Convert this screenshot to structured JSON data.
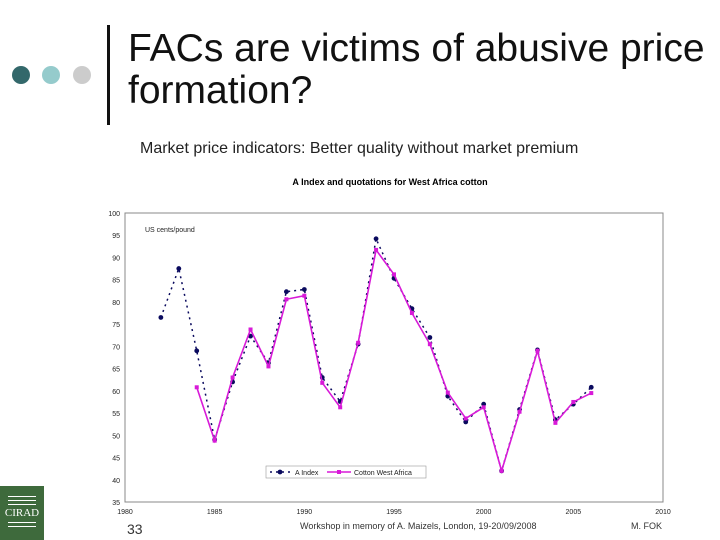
{
  "slide": {
    "title": "FACs are victims of abusive price formation?",
    "subtitle": "Market price indicators: Better quality without market premium",
    "page_number": "33",
    "footer": "Workshop in memory of A. Maizels, London, 19-20/09/2008",
    "author": "M. FOK",
    "logo_text": "CIRAD"
  },
  "colors": {
    "dots": [
      "#33686b",
      "#95cbcc",
      "#cccccc"
    ],
    "a_index": "#0a0a5e",
    "cotton": "#d81ad8"
  },
  "chart_data": {
    "type": "line",
    "title": "A Index and quotations for West Africa cotton",
    "annotation": "US cents/pound",
    "xlim": [
      1980,
      2010
    ],
    "ylim": [
      35,
      100
    ],
    "xticks": [
      1980,
      1985,
      1990,
      1995,
      2000,
      2005,
      2010
    ],
    "yticks": [
      35,
      40,
      45,
      50,
      55,
      60,
      65,
      70,
      75,
      80,
      85,
      90,
      95,
      100
    ],
    "legend_position": "bottom-center",
    "series": [
      {
        "name": "A Index",
        "x": [
          1982,
          1983,
          1984,
          1985,
          1986,
          1987,
          1988,
          1989,
          1990,
          1991,
          1992,
          1993,
          1994,
          1995,
          1996,
          1997,
          1998,
          1999,
          2000,
          2001,
          2002,
          2003,
          2004,
          2005,
          2006
        ],
        "values": [
          76.5,
          87.5,
          69,
          49,
          62,
          72.3,
          66.3,
          82.3,
          82.8,
          63,
          57.6,
          70.5,
          94.2,
          85.3,
          78.5,
          72,
          58.8,
          53,
          57,
          42,
          55.8,
          69.2,
          53.5,
          57,
          60.8
        ]
      },
      {
        "name": "Cotton West Africa",
        "x": [
          1984,
          1985,
          1986,
          1987,
          1988,
          1989,
          1990,
          1991,
          1992,
          1993,
          1994,
          1995,
          1996,
          1997,
          1998,
          1999,
          2000,
          2001,
          2002,
          2003,
          2004,
          2005,
          2006
        ],
        "values": [
          60.8,
          48.8,
          63,
          73.8,
          65.5,
          80.6,
          81.4,
          61.8,
          56.3,
          70.8,
          91.7,
          86.2,
          77.5,
          70.5,
          59.6,
          53.8,
          56.3,
          42,
          55.3,
          69,
          52.8,
          57.5,
          59.5
        ]
      }
    ]
  }
}
